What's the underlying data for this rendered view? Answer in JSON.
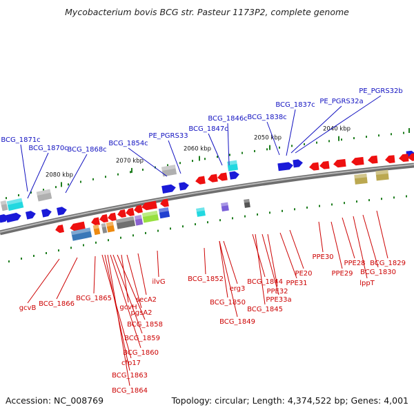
{
  "title": "Mycobacterium bovis BCG str. Pasteur 1173P2, complete genome",
  "footer": {
    "accession": "Accession: NC_008769",
    "topology": "Topology: circular; Length: 4,374,522 bp; Genes: 4,001"
  },
  "colors": {
    "forward_gene": "#1a1ad8",
    "reverse_gene": "#ee1010",
    "backbone": "#8a8a8a",
    "ticks": "#1c7c1c",
    "blue_label": "#1010c0",
    "red_label": "#cc0000"
  },
  "scale_ticks": [
    "2080 kbp",
    "2070 kbp",
    "2060 kbp",
    "2050 kbp",
    "2040 kbp"
  ],
  "forward_labels": [
    "BCG_1871c",
    "BCG_1870c",
    "BCG_1868c",
    "BCG_1854c",
    "PE_PGRS33",
    "BCG_1847c",
    "BCG_1846c",
    "BCG_1838c",
    "BCG_1837c",
    "PE_PGRS32a",
    "PE_PGRS32b"
  ],
  "reverse_labels": [
    "gcvB",
    "BCG_1866",
    "BCG_1865",
    "cfp17",
    "BCG_1863",
    "BCG_1864",
    "BCG_1860",
    "BCG_1859",
    "BCG_1858",
    "gcvH",
    "pgsA2",
    "secA2",
    "ilvG",
    "BCG_1852",
    "BCG_1850",
    "erg3",
    "BCG_1849",
    "BCG_1844",
    "BCG_1845",
    "PPE33a",
    "PPE32",
    "PPE31",
    "PE20",
    "PPE30",
    "PPE29",
    "PPE28",
    "lppT",
    "BCG_1830",
    "BCG_1829"
  ]
}
